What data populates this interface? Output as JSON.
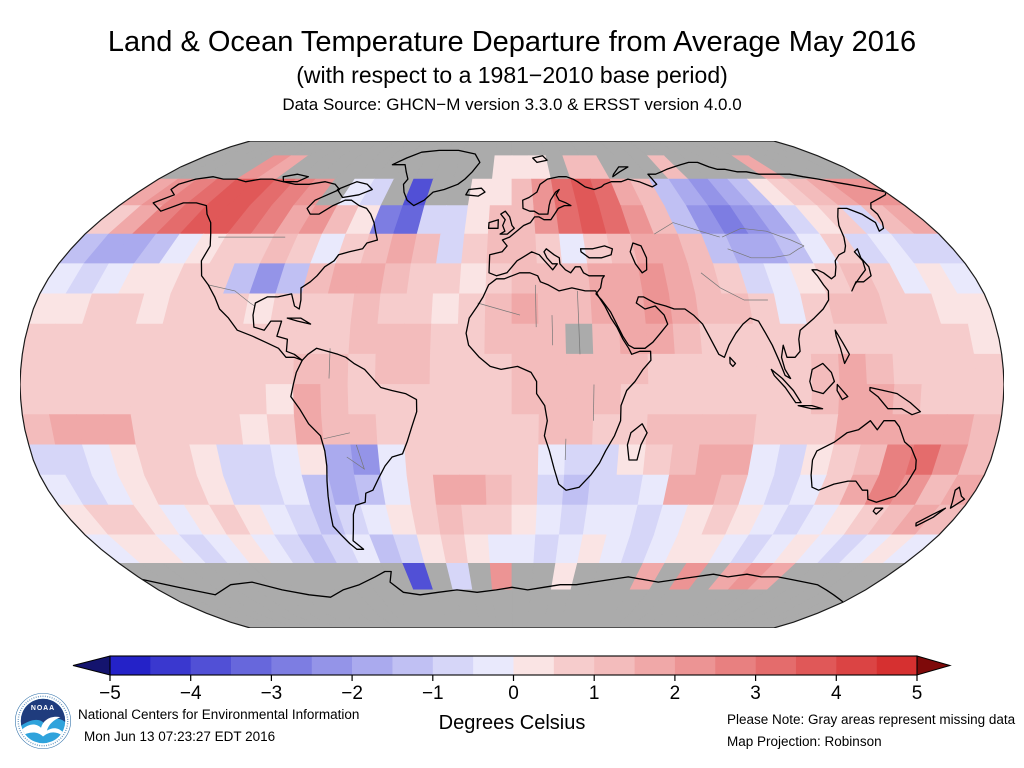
{
  "header": {
    "title": "Land & Ocean Temperature Departure from Average May 2016",
    "subtitle": "(with respect to a 1981−2010 base period)",
    "data_source": "Data Source: GHCN−M version 3.3.0 & ERSST version 4.0.0"
  },
  "colorbar": {
    "unit_label": "Degrees Celsius",
    "ticks": [
      "−5",
      "−4",
      "−3",
      "−2",
      "−1",
      "0",
      "1",
      "2",
      "3",
      "4",
      "5"
    ],
    "min": -5,
    "max": 5,
    "segments": [
      "#2422C8",
      "#3A38CF",
      "#5150D6",
      "#6767DC",
      "#7D7DE2",
      "#9494E8",
      "#AAAAEE",
      "#C0C0F3",
      "#D6D6F8",
      "#E9E9FC",
      "#FAE4E4",
      "#F6CCCC",
      "#F3BCBC",
      "#F0A8A8",
      "#EC9494",
      "#E88080",
      "#E46C6C",
      "#E05858",
      "#DB4444",
      "#D63030"
    ],
    "arrow_left": "#14146E",
    "arrow_right": "#7E0A0A"
  },
  "map": {
    "missing_color": "#ABABAB",
    "palette": {
      "a": "#2422C8",
      "b": "#3A38CF",
      "c": "#5150D6",
      "d": "#6767DC",
      "e": "#7D7DE2",
      "f": "#9494E8",
      "g": "#AAAAEE",
      "h": "#C0C0F3",
      "i": "#D6D6F8",
      "j": "#E9E9FC",
      "k": "#FAE4E4",
      "l": "#F6CCCC",
      "m": "#F3BCBC",
      "n": "#F0A8A8",
      "o": "#EC9494",
      "p": "#E88080",
      "q": "#E46C6C",
      "r": "#E05858",
      "s": "#DB4444",
      "t": "#D63030",
      "G": "#ABABAB"
    },
    "grid": {
      "cell_deg": 10,
      "rows": [
        "GGGGGGGGGGGGGGGGGGGGGGGGGGGGGGGGGGGG",
        "GGGGonGGGGGGGGGGGkkkGmmGGGmGGGGnGGGG",
        "nopqrrqpoGjiGcGGkkmoqrqnmhgfghklmnoo",
        "lnpqrrqpnomkediikmmoqrqomhfefgiklimn",
        "hgghjkllmljlmnmilmmljlmnnmhgghjlijii",
        "jijkkllhfhmnnmllklmmmnnonmlijklmljkj",
        "kkllklllklllmllklmnmmnnonmmljlmmllkk",
        "llllllllllllmmmllmmmGmnnmllllllllllk",
        "llllllllllmmlmmlllmmmmmllllllmnmllll",
        "lllllllllknmllllllmmmmlllllllmnnmlll",
        "mnnnllllklnmmllllllmmllmmmmlllnnnnnm",
        "iijkllkiijkgfjllllljiiklmnnjiklmpqom",
        "jijkllkiijhghjlnnmlihiijnnmjijlnpomn",
        "kllkjklkjihijklmllkjijjijklkjijklmnm",
        "jkkjijkjihijhiklkjjijkjijkkjijkjijkj",
        "GGGGGGGGGGGGGcGiGoGGkGGGnGoGnonGGGGG",
        "GGGGGGGGGGGGGGGGGGGGGGGGGGGGGGGGGGGG",
        "GGGGGGGGGGGGGGGGGGGGGGGGGGGGGGGGGGGG"
      ]
    }
  },
  "footer": {
    "logo_label": "NOAA",
    "org": "National Centers for Environmental Information",
    "timestamp": "Mon Jun 13 07:23:27 EDT 2016",
    "note": "Please Note: Gray areas represent missing data",
    "projection": "Map Projection: Robinson"
  }
}
